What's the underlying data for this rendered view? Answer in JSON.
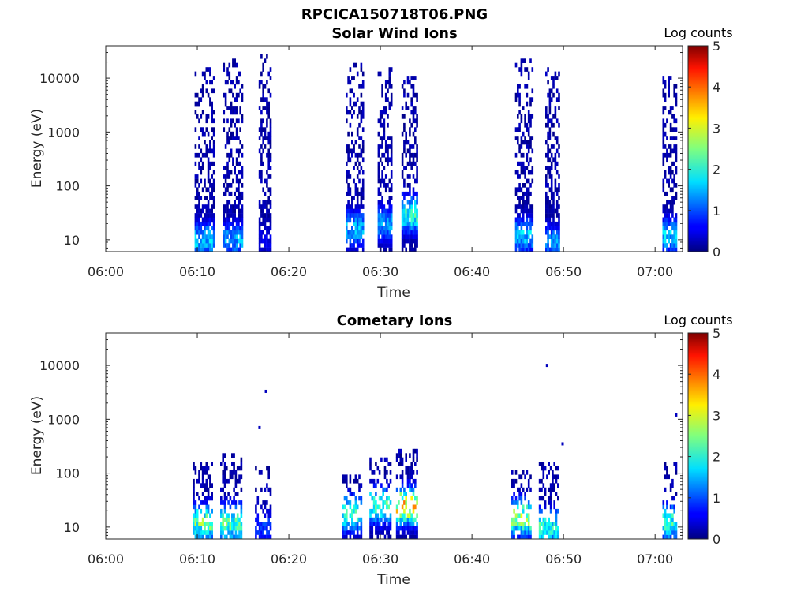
{
  "figure_title": "RPCICA150718T06.PNG",
  "chart_data": [
    {
      "type": "heatmap",
      "title": "Solar Wind Ions",
      "xlabel": "Time",
      "ylabel": "Energy (eV)",
      "x_ticks": [
        "06:00",
        "06:10",
        "06:20",
        "06:30",
        "06:40",
        "06:50",
        "07:00"
      ],
      "x_range_minutes": [
        0,
        63
      ],
      "y_scale": "log",
      "y_range_eV": [
        6,
        40000
      ],
      "y_ticks": [
        "10",
        "100",
        "1000",
        "10000"
      ],
      "colorbar": {
        "label": "Log counts",
        "range": [
          0,
          5
        ],
        "ticks": [
          "0",
          "1",
          "2",
          "3",
          "4",
          "5"
        ],
        "colormap": "jet"
      },
      "bursts": [
        {
          "t_start": 9.7,
          "t_end": 11.7,
          "e_max": 15000,
          "peak": 1.8,
          "peak_e": 10
        },
        {
          "t_start": 12.8,
          "t_end": 14.8,
          "e_max": 25000,
          "peak": 1.6,
          "peak_e": 10
        },
        {
          "t_start": 16.7,
          "t_end": 18.0,
          "e_max": 30000,
          "peak": 0.6,
          "peak_e": 10
        },
        {
          "t_start": 26.2,
          "t_end": 28.0,
          "e_max": 20000,
          "peak": 1.7,
          "peak_e": 16
        },
        {
          "t_start": 29.7,
          "t_end": 31.2,
          "e_max": 16000,
          "peak": 1.6,
          "peak_e": 20
        },
        {
          "t_start": 32.3,
          "t_end": 34.0,
          "e_max": 12000,
          "peak": 2.4,
          "peak_e": 30
        },
        {
          "t_start": 44.7,
          "t_end": 46.7,
          "e_max": 25000,
          "peak": 1.8,
          "peak_e": 12
        },
        {
          "t_start": 48.0,
          "t_end": 49.5,
          "e_max": 15000,
          "peak": 1.5,
          "peak_e": 9
        },
        {
          "t_start": 60.8,
          "t_end": 62.3,
          "e_max": 12000,
          "peak": 1.8,
          "peak_e": 12
        }
      ]
    },
    {
      "type": "heatmap",
      "title": "Cometary Ions",
      "xlabel": "Time",
      "ylabel": "Energy (eV)",
      "x_ticks": [
        "06:00",
        "06:10",
        "06:20",
        "06:30",
        "06:40",
        "06:50",
        "07:00"
      ],
      "x_range_minutes": [
        0,
        63
      ],
      "y_scale": "log",
      "y_range_eV": [
        6,
        40000
      ],
      "y_ticks": [
        "10",
        "100",
        "1000",
        "10000"
      ],
      "colorbar": {
        "label": "Log counts",
        "range": [
          0,
          5
        ],
        "ticks": [
          "0",
          "1",
          "2",
          "3",
          "4",
          "5"
        ],
        "colormap": "jet"
      },
      "bursts": [
        {
          "t_start": 9.5,
          "t_end": 11.5,
          "e_max": 150,
          "peak": 2.7,
          "peak_e": 12
        },
        {
          "t_start": 12.5,
          "t_end": 14.8,
          "e_max": 250,
          "peak": 2.6,
          "peak_e": 12
        },
        {
          "t_start": 16.3,
          "t_end": 18.0,
          "e_max": 150,
          "peak": 1.0,
          "peak_e": 10
        },
        {
          "t_start": 25.8,
          "t_end": 27.8,
          "e_max": 120,
          "peak": 2.3,
          "peak_e": 18
        },
        {
          "t_start": 28.8,
          "t_end": 31.0,
          "e_max": 200,
          "peak": 2.4,
          "peak_e": 25
        },
        {
          "t_start": 31.7,
          "t_end": 34.0,
          "e_max": 300,
          "peak": 3.6,
          "peak_e": 25
        },
        {
          "t_start": 44.3,
          "t_end": 46.5,
          "e_max": 120,
          "peak": 2.9,
          "peak_e": 15
        },
        {
          "t_start": 47.3,
          "t_end": 49.5,
          "e_max": 150,
          "peak": 2.3,
          "peak_e": 10
        },
        {
          "t_start": 60.8,
          "t_end": 62.3,
          "e_max": 150,
          "peak": 2.4,
          "peak_e": 12
        }
      ],
      "isolated_points": [
        {
          "t": 17.5,
          "e": 3300
        },
        {
          "t": 16.8,
          "e": 700
        },
        {
          "t": 48.2,
          "e": 10000
        },
        {
          "t": 49.9,
          "e": 350
        },
        {
          "t": 62.3,
          "e": 1200
        }
      ]
    }
  ]
}
